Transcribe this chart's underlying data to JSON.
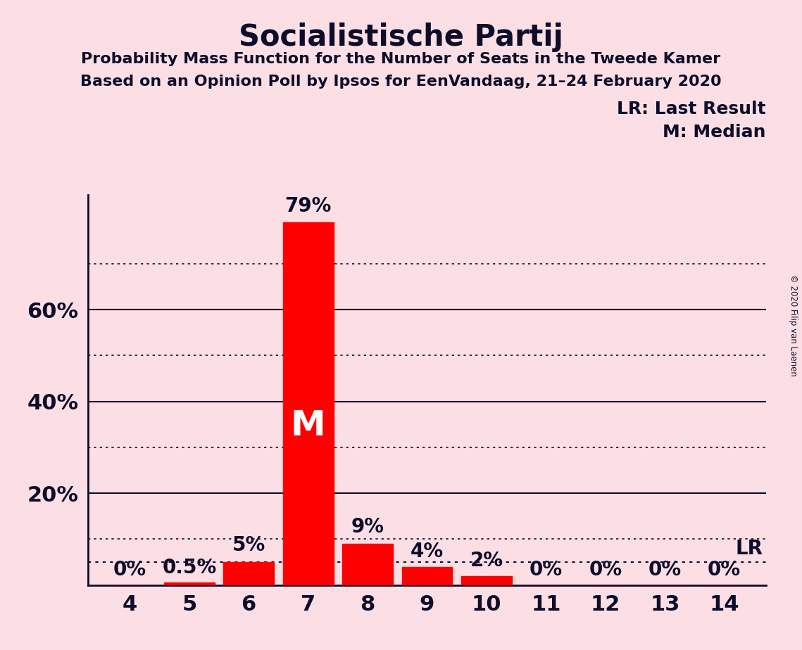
{
  "title": "Socialistische Partij",
  "subtitle1": "Probability Mass Function for the Number of Seats in the Tweede Kamer",
  "subtitle2": "Based on an Opinion Poll by Ipsos for EenVandaag, 21–24 February 2020",
  "copyright": "© 2020 Filip van Laenen",
  "seats": [
    4,
    5,
    6,
    7,
    8,
    9,
    10,
    11,
    12,
    13,
    14
  ],
  "probabilities": [
    0.0,
    0.5,
    5.0,
    79.0,
    9.0,
    4.0,
    2.0,
    0.0,
    0.0,
    0.0,
    0.0
  ],
  "bar_labels": [
    "0%",
    "0.5%",
    "5%",
    "79%",
    "9%",
    "4%",
    "2%",
    "0%",
    "0%",
    "0%",
    "0%"
  ],
  "bar_color": "#FF0000",
  "background_color": "#FCDFE4",
  "text_color": "#0D0D2B",
  "median_seat": 7,
  "last_result_prob": 5.0,
  "legend_lr": "LR: Last Result",
  "legend_m": "M: Median",
  "yticks_solid": [
    20,
    40,
    60
  ],
  "yticks_dotted": [
    10,
    30,
    50,
    70
  ],
  "ylim": [
    0,
    85
  ],
  "bar_width": 0.85,
  "xlim": [
    3.3,
    14.7
  ]
}
